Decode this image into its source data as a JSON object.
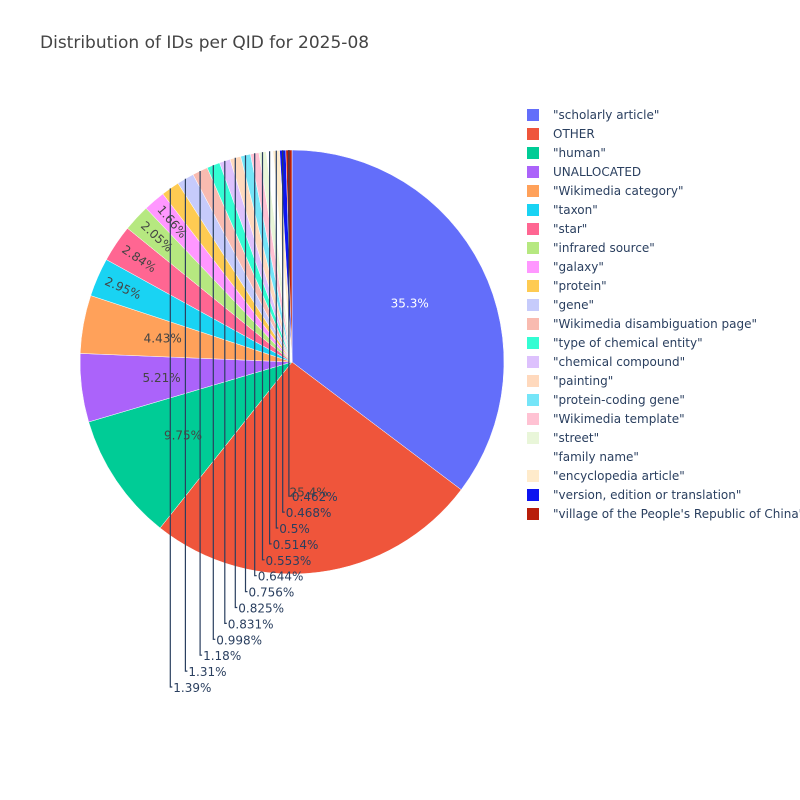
{
  "chart_data": {
    "type": "pie",
    "title": "Distribution of IDs per QID for 2025-08",
    "labels": [
      "\"scholarly article\"",
      "OTHER",
      "\"human\"",
      "UNALLOCATED",
      "\"Wikimedia category\"",
      "\"taxon\"",
      "\"star\"",
      "\"infrared source\"",
      "\"galaxy\"",
      "\"protein\"",
      "\"gene\"",
      "\"Wikimedia disambiguation page\"",
      "\"type of chemical entity\"",
      "\"chemical compound\"",
      "\"painting\"",
      "\"protein-coding gene\"",
      "\"Wikimedia template\"",
      "\"street\"",
      "\"family name\"",
      "\"encyclopedia article\"",
      "\"version, edition or translation\"",
      "\"village of the People's Republic of China\""
    ],
    "values": [
      35.3,
      25.4,
      9.75,
      5.21,
      4.43,
      2.95,
      2.84,
      2.05,
      1.66,
      1.39,
      1.31,
      1.18,
      0.998,
      0.831,
      0.825,
      0.756,
      0.644,
      0.553,
      0.514,
      0.5,
      0.468,
      0.462
    ],
    "percent_labels": [
      "35.3%",
      "25.4%",
      "9.75%",
      "5.21%",
      "4.43%",
      "2.95%",
      "2.84%",
      "2.05%",
      "1.66%",
      "1.39%",
      "1.31%",
      "1.18%",
      "0.998%",
      "0.831%",
      "0.825%",
      "0.756%",
      "0.644%",
      "0.553%",
      "0.514%",
      "0.5%",
      "0.468%",
      "0.462%"
    ],
    "colors": [
      "#636efa",
      "#EF553B",
      "#00cc96",
      "#ab63fa",
      "#FFA15A",
      "#19d3f3",
      "#FF6692",
      "#B6E880",
      "#FF97FF",
      "#FECB52",
      "#c6cbfb",
      "#f9bbb0",
      "#33fdd3",
      "#ddc1fd",
      "#ffd9bd",
      "#75e5f8",
      "#ffc2d3",
      "#e9f6d9",
      "#ffffff",
      "#ffebcb",
      "#0d14f0",
      "#b81e0a"
    ],
    "legend_position": "right"
  }
}
